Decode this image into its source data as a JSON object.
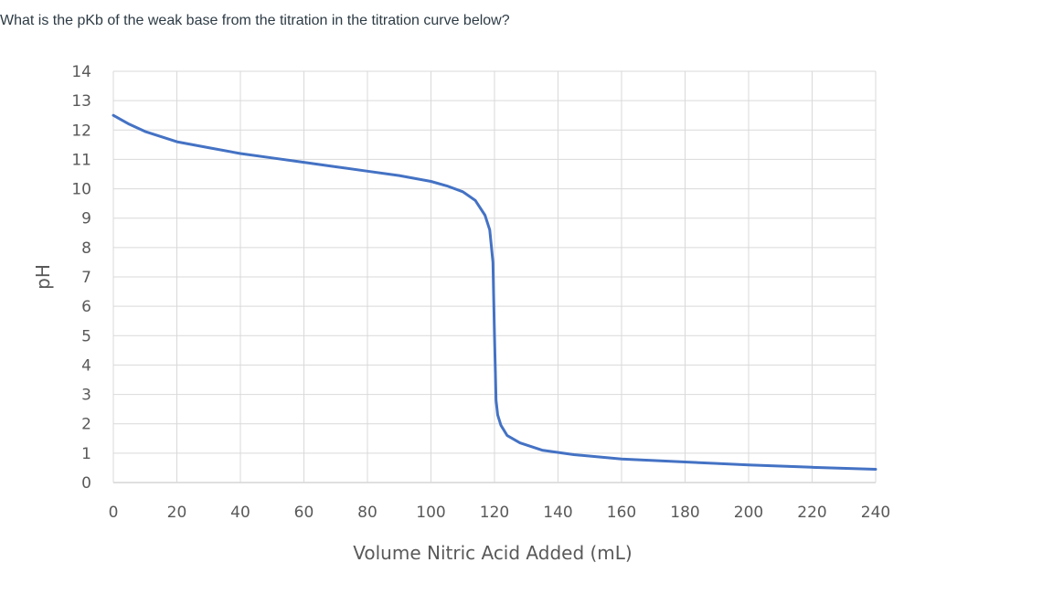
{
  "question": "What is the pKb of the weak base from the titration in the titration curve below?",
  "chart_data": {
    "type": "line",
    "title": "",
    "xlabel": "Volume Nitric Acid Added (mL)",
    "ylabel": "pH",
    "xlim": [
      0,
      240
    ],
    "ylim": [
      0,
      14
    ],
    "x_ticks": [
      0,
      20,
      40,
      60,
      80,
      100,
      120,
      140,
      160,
      180,
      200,
      220,
      240
    ],
    "y_ticks": [
      0,
      1,
      2,
      3,
      4,
      5,
      6,
      7,
      8,
      9,
      10,
      11,
      12,
      13,
      14
    ],
    "grid": true,
    "legend": "none",
    "series": [
      {
        "color": "#4472c4",
        "x": [
          0,
          5,
          10,
          20,
          30,
          40,
          50,
          60,
          70,
          80,
          90,
          100,
          105,
          110,
          114,
          117,
          118.5,
          119.5,
          120,
          120.5,
          121,
          122,
          124,
          128,
          135,
          145,
          160,
          180,
          200,
          220,
          240
        ],
        "y": [
          12.5,
          12.2,
          11.95,
          11.6,
          11.4,
          11.2,
          11.05,
          10.9,
          10.75,
          10.6,
          10.45,
          10.25,
          10.1,
          9.9,
          9.6,
          9.1,
          8.6,
          7.5,
          5.0,
          2.8,
          2.3,
          1.95,
          1.6,
          1.35,
          1.1,
          0.95,
          0.8,
          0.7,
          0.6,
          0.52,
          0.45
        ]
      }
    ]
  }
}
